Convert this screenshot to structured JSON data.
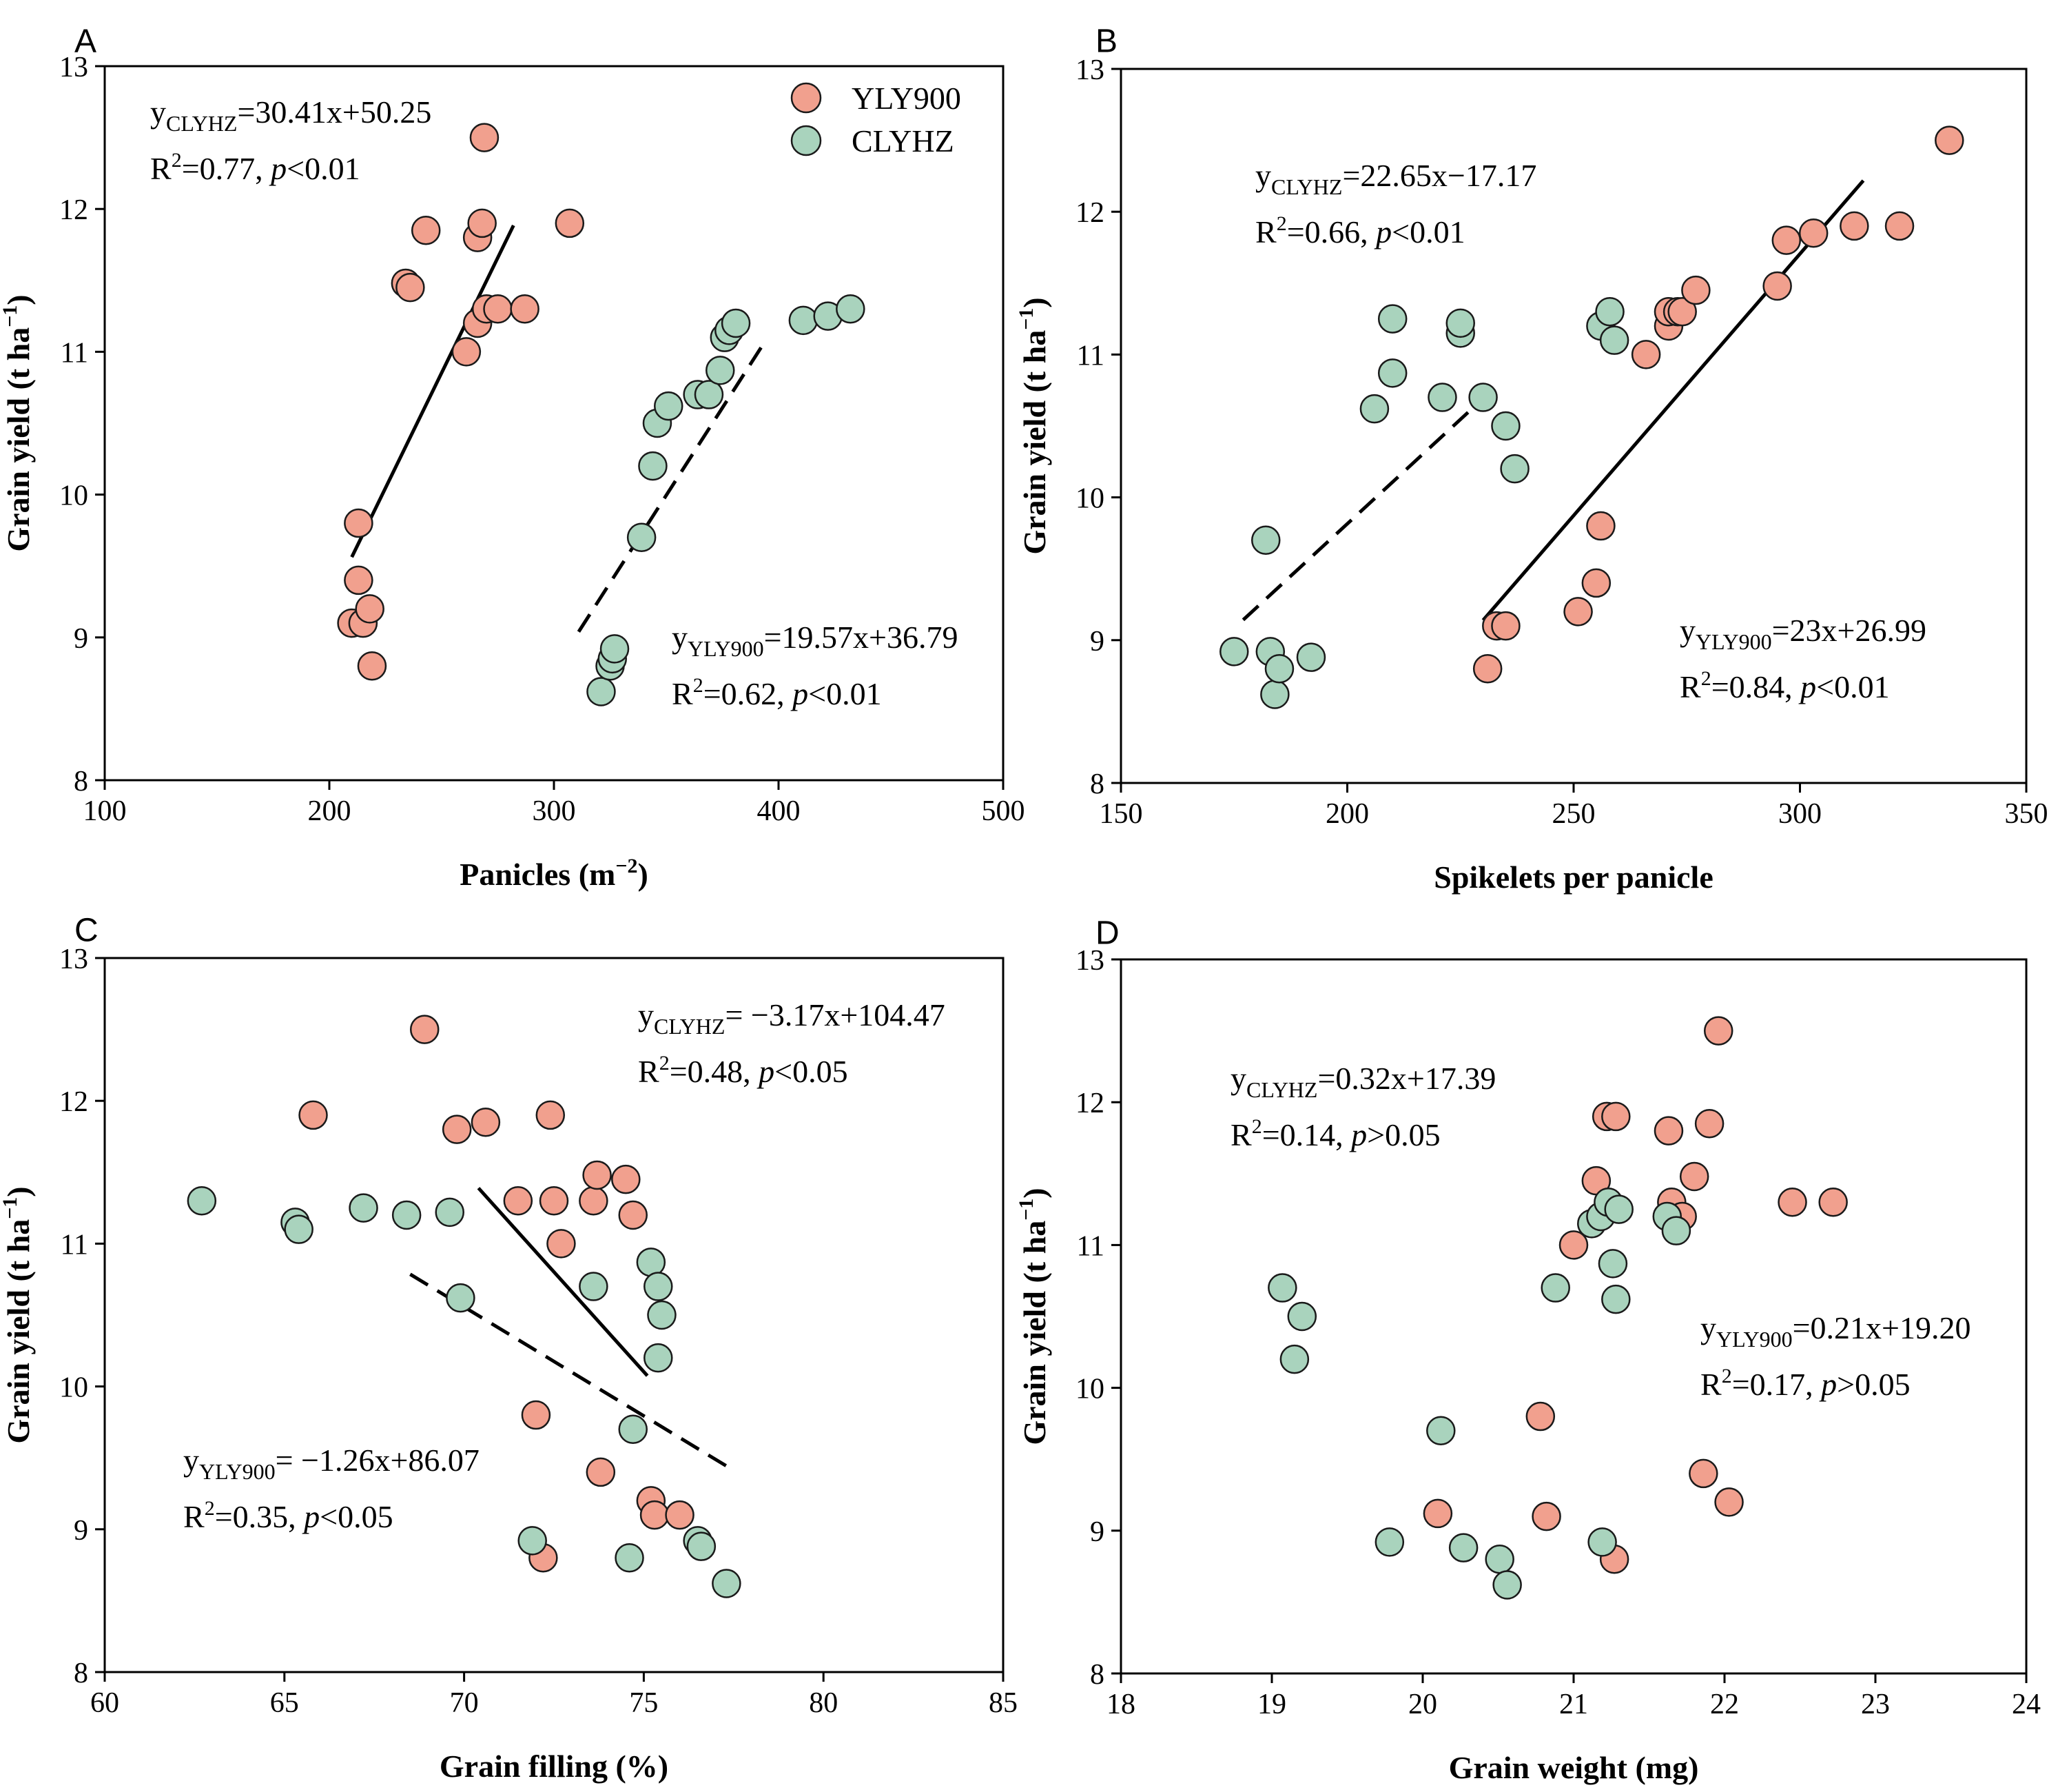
{
  "colors": {
    "YLY900": "#f1a08e",
    "CLYHZ": "#a9d3bd",
    "stroke": "#1a1a1a"
  },
  "legend": [
    {
      "name": "YLY900",
      "color": "#f1a08e"
    },
    {
      "name": "CLYHZ",
      "color": "#a9d3bd"
    }
  ],
  "chart_data": [
    {
      "type": "scatter",
      "panel": "A",
      "xlabel": "Panicles (m−2)",
      "xlabel_main": "Panicles (m",
      "xlabel_sup": "−2",
      "xlabel_end": ")",
      "ylabel": "Grain yield (t ha−1)",
      "xlim": [
        100,
        500
      ],
      "ylim": [
        8,
        13
      ],
      "xticks": [
        100,
        200,
        300,
        400,
        500
      ],
      "yticks": [
        8,
        9,
        10,
        11,
        12,
        13
      ],
      "series": [
        {
          "name": "YLY900",
          "points": [
            [
              210,
              9.1
            ],
            [
              213,
              9.4
            ],
            [
              213,
              9.8
            ],
            [
              215,
              9.1
            ],
            [
              218,
              9.2
            ],
            [
              219,
              8.8
            ],
            [
              234,
              11.48
            ],
            [
              236,
              11.45
            ],
            [
              243,
              11.85
            ],
            [
              261,
              11.0
            ],
            [
              266,
              11.8
            ],
            [
              266,
              11.2
            ],
            [
              268,
              11.9
            ],
            [
              269,
              12.5
            ],
            [
              270,
              11.3
            ],
            [
              275,
              11.3
            ],
            [
              287,
              11.3
            ],
            [
              307,
              11.9
            ]
          ],
          "fit": {
            "x": [
              210,
              282
            ],
            "style": "solid"
          }
        },
        {
          "name": "CLYHZ",
          "points": [
            [
              321,
              8.62
            ],
            [
              325,
              8.8
            ],
            [
              326,
              8.85
            ],
            [
              327,
              8.92
            ],
            [
              339,
              9.7
            ],
            [
              344,
              10.2
            ],
            [
              346,
              10.5
            ],
            [
              351,
              10.62
            ],
            [
              364,
              10.7
            ],
            [
              369,
              10.7
            ],
            [
              374,
              10.87
            ],
            [
              376,
              11.1
            ],
            [
              378,
              11.15
            ],
            [
              381,
              11.2
            ],
            [
              411,
              11.22
            ],
            [
              422,
              11.25
            ],
            [
              432,
              11.3
            ]
          ],
          "fit": {
            "x": [
              311,
              393
            ],
            "style": "dashed"
          }
        }
      ],
      "equations": [
        {
          "y": "y",
          "sub": "CLYHZ",
          "rest": "=30.41x+50.25",
          "r2": "=0.77, ",
          "p": "p",
          "pval": "<0.01"
        },
        {
          "y": "y",
          "sub": "YLY900",
          "rest": "=19.57x+36.79",
          "r2": "=0.62, ",
          "p": "p",
          "pval": "<0.01"
        }
      ]
    },
    {
      "type": "scatter",
      "panel": "B",
      "xlabel": "Spikelets per panicle",
      "xlabel_main": "Spikelets per panicle",
      "xlabel_sup": "",
      "xlabel_end": "",
      "ylabel": "Grain yield (t ha−1)",
      "xlim": [
        150,
        350
      ],
      "ylim": [
        8,
        13
      ],
      "xticks": [
        150,
        200,
        250,
        300,
        350
      ],
      "yticks": [
        8,
        9,
        10,
        11,
        12,
        13
      ],
      "series": [
        {
          "name": "YLY900",
          "points": [
            [
              231,
              8.8
            ],
            [
              233,
              9.1
            ],
            [
              235,
              9.1
            ],
            [
              251,
              9.2
            ],
            [
              255,
              9.4
            ],
            [
              256,
              9.8
            ],
            [
              266,
              11.0
            ],
            [
              271,
              11.2
            ],
            [
              271,
              11.3
            ],
            [
              273,
              11.3
            ],
            [
              274,
              11.3
            ],
            [
              277,
              11.45
            ],
            [
              295,
              11.48
            ],
            [
              297,
              11.8
            ],
            [
              303,
              11.85
            ],
            [
              312,
              11.9
            ],
            [
              322,
              11.9
            ],
            [
              333,
              12.5
            ]
          ],
          "fit": {
            "x": [
              230,
              314
            ],
            "style": "solid"
          }
        },
        {
          "name": "CLYHZ",
          "points": [
            [
              175,
              8.92
            ],
            [
              182,
              9.7
            ],
            [
              183,
              8.92
            ],
            [
              184,
              8.62
            ],
            [
              185,
              8.8
            ],
            [
              192,
              8.88
            ],
            [
              206,
              10.62
            ],
            [
              210,
              10.87
            ],
            [
              210,
              11.25
            ],
            [
              221,
              10.7
            ],
            [
              225,
              11.15
            ],
            [
              225,
              11.22
            ],
            [
              230,
              10.7
            ],
            [
              235,
              10.5
            ],
            [
              237,
              10.2
            ],
            [
              256,
              11.2
            ],
            [
              258,
              11.3
            ],
            [
              259,
              11.1
            ]
          ],
          "fit": {
            "x": [
              177,
              228
            ],
            "style": "dashed"
          }
        }
      ],
      "equations": [
        {
          "y": "y",
          "sub": "CLYHZ",
          "rest": "=22.65x−17.17",
          "r2": "=0.66, ",
          "p": "p",
          "pval": "<0.01"
        },
        {
          "y": "y",
          "sub": "YLY900",
          "rest": "=23x+26.99",
          "r2": "=0.84, ",
          "p": "p",
          "pval": "<0.01"
        }
      ]
    },
    {
      "type": "scatter",
      "panel": "C",
      "xlabel": "Grain filling (%)",
      "xlabel_main": "Grain filling (%)",
      "xlabel_sup": "",
      "xlabel_end": "",
      "ylabel": "Grain yield (t ha−1)",
      "xlim": [
        60,
        85
      ],
      "ylim": [
        8,
        13
      ],
      "xticks": [
        60,
        65,
        70,
        75,
        80,
        85
      ],
      "yticks": [
        8,
        9,
        10,
        11,
        12,
        13
      ],
      "series": [
        {
          "name": "YLY900",
          "points": [
            [
              65.8,
              11.9
            ],
            [
              68.9,
              12.5
            ],
            [
              69.8,
              11.8
            ],
            [
              70.6,
              11.85
            ],
            [
              71.5,
              11.3
            ],
            [
              72.0,
              9.8
            ],
            [
              72.2,
              8.8
            ],
            [
              72.4,
              11.9
            ],
            [
              72.5,
              11.3
            ],
            [
              72.7,
              11.0
            ],
            [
              73.6,
              11.3
            ],
            [
              73.7,
              11.48
            ],
            [
              73.8,
              9.4
            ],
            [
              74.5,
              11.45
            ],
            [
              74.7,
              11.2
            ],
            [
              75.2,
              9.2
            ],
            [
              75.3,
              9.1
            ],
            [
              76.0,
              9.1
            ]
          ],
          "fit": {
            "x": [
              70.4,
              75.1
            ],
            "style": "solid"
          }
        },
        {
          "name": "CLYHZ",
          "points": [
            [
              62.7,
              11.3
            ],
            [
              65.3,
              11.15
            ],
            [
              65.4,
              11.1
            ],
            [
              67.2,
              11.25
            ],
            [
              68.4,
              11.2
            ],
            [
              69.6,
              11.22
            ],
            [
              69.9,
              10.62
            ],
            [
              71.9,
              8.92
            ],
            [
              73.6,
              10.7
            ],
            [
              74.6,
              8.8
            ],
            [
              74.7,
              9.7
            ],
            [
              75.2,
              10.87
            ],
            [
              75.4,
              10.7
            ],
            [
              75.4,
              10.2
            ],
            [
              75.5,
              10.5
            ],
            [
              76.5,
              8.92
            ],
            [
              76.6,
              8.88
            ],
            [
              77.3,
              8.62
            ]
          ],
          "fit": {
            "x": [
              68.5,
              77.3
            ],
            "style": "dashed"
          }
        }
      ],
      "equations": [
        {
          "y": "y",
          "sub": "CLYHZ",
          "rest": "= −3.17x+104.47",
          "r2": "=0.48, ",
          "p": "p",
          "pval": "<0.05"
        },
        {
          "y": "y",
          "sub": "YLY900",
          "rest": "= −1.26x+86.07",
          "r2": "=0.35, ",
          "p": "p",
          "pval": "<0.05"
        }
      ]
    },
    {
      "type": "scatter",
      "panel": "D",
      "xlabel": "Grain weight (mg)",
      "xlabel_main": "Grain weight (mg)",
      "xlabel_sup": "",
      "xlabel_end": "",
      "ylabel": "Grain yield (t ha−1)",
      "xlim": [
        18,
        24
      ],
      "ylim": [
        8,
        13
      ],
      "xticks": [
        18,
        19,
        20,
        21,
        22,
        23,
        24
      ],
      "yticks": [
        8,
        9,
        10,
        11,
        12,
        13
      ],
      "series": [
        {
          "name": "YLY900",
          "points": [
            [
              20.1,
              9.12
            ],
            [
              20.78,
              9.8
            ],
            [
              20.82,
              9.1
            ],
            [
              21.0,
              11.0
            ],
            [
              21.15,
              11.45
            ],
            [
              21.22,
              11.9
            ],
            [
              21.28,
              11.9
            ],
            [
              21.27,
              8.8
            ],
            [
              21.63,
              11.8
            ],
            [
              21.65,
              11.3
            ],
            [
              21.72,
              11.2
            ],
            [
              21.8,
              11.48
            ],
            [
              21.86,
              9.4
            ],
            [
              21.9,
              11.85
            ],
            [
              21.96,
              12.5
            ],
            [
              22.03,
              9.2
            ],
            [
              22.45,
              11.3
            ],
            [
              22.72,
              11.3
            ]
          ],
          "fit": null
        },
        {
          "name": "CLYHZ",
          "points": [
            [
              19.07,
              10.7
            ],
            [
              19.15,
              10.2
            ],
            [
              19.2,
              10.5
            ],
            [
              19.78,
              8.92
            ],
            [
              20.12,
              9.7
            ],
            [
              20.27,
              8.88
            ],
            [
              20.51,
              8.8
            ],
            [
              20.56,
              8.62
            ],
            [
              20.88,
              10.7
            ],
            [
              21.12,
              11.15
            ],
            [
              21.18,
              11.2
            ],
            [
              21.19,
              8.92
            ],
            [
              21.23,
              11.3
            ],
            [
              21.26,
              10.87
            ],
            [
              21.28,
              10.62
            ],
            [
              21.3,
              11.25
            ],
            [
              21.62,
              11.2
            ],
            [
              21.68,
              11.1
            ]
          ],
          "fit": null
        }
      ],
      "equations": [
        {
          "y": "y",
          "sub": "CLYHZ",
          "rest": "=0.32x+17.39",
          "r2": "=0.14, ",
          "p": "p",
          "pval": ">0.05"
        },
        {
          "y": "y",
          "sub": "YLY900",
          "rest": "=0.21x+19.20",
          "r2": "=0.17, ",
          "p": "p",
          "pval": ">0.05"
        }
      ]
    }
  ]
}
